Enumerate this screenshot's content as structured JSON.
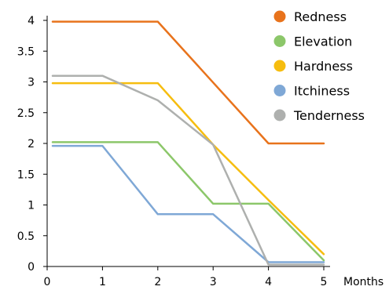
{
  "chart_data": {
    "type": "line",
    "title": "",
    "xlabel": "Months",
    "ylabel": "",
    "x": [
      0,
      1,
      2,
      3,
      4,
      5
    ],
    "xlim": [
      0,
      5
    ],
    "ylim": [
      0,
      4
    ],
    "x_ticks": [
      "0",
      "1",
      "2",
      "3",
      "4",
      "5"
    ],
    "y_ticks": [
      "0",
      "0.5",
      "1",
      "1.5",
      "2",
      "2.5",
      "3",
      "3.5",
      "4"
    ],
    "grid": false,
    "legend": "top-right",
    "series": [
      {
        "name": "Redness",
        "color": "#e8731c",
        "x": [
          0.1,
          2,
          4,
          5
        ],
        "values": [
          3.98,
          3.98,
          2.0,
          2.0
        ]
      },
      {
        "name": "Elevation",
        "color": "#8cc76a",
        "x": [
          0.1,
          2,
          3,
          4,
          5
        ],
        "values": [
          2.02,
          2.02,
          1.02,
          1.02,
          0.1
        ]
      },
      {
        "name": "Hardness",
        "color": "#f6bd0f",
        "x": [
          0.1,
          2,
          3,
          4,
          5
        ],
        "values": [
          2.98,
          2.98,
          1.98,
          1.08,
          0.2
        ]
      },
      {
        "name": "Itchiness",
        "color": "#7fa8d6",
        "x": [
          0.1,
          1,
          2,
          3,
          4,
          5
        ],
        "values": [
          1.96,
          1.96,
          0.85,
          0.85,
          0.07,
          0.07
        ]
      },
      {
        "name": "Tenderness",
        "color": "#aeb0ae",
        "x": [
          0.1,
          1,
          2,
          3,
          4,
          5
        ],
        "values": [
          3.1,
          3.1,
          2.7,
          1.98,
          0.03,
          0.03
        ]
      }
    ]
  }
}
